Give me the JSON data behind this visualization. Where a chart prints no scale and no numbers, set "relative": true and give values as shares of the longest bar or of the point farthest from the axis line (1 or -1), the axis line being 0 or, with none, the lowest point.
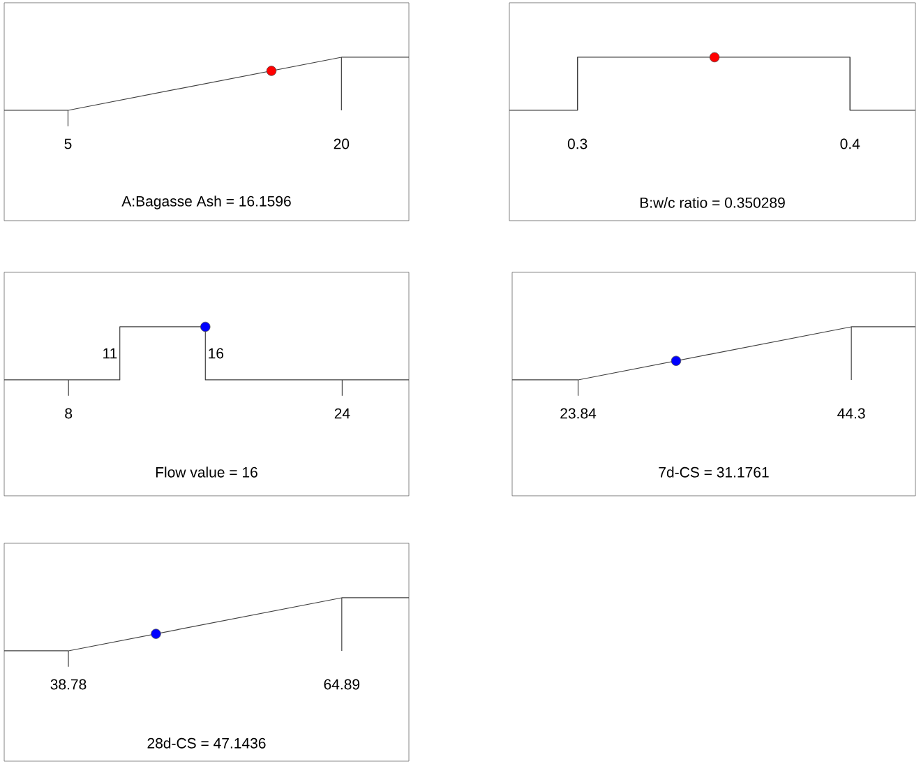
{
  "chart_data": [
    {
      "type": "line",
      "relative": true,
      "xlabel": "A:Bagasse Ash = 16.1596",
      "xlim": [
        1.5,
        23.7
      ],
      "xticks": [
        5,
        20
      ],
      "series": [
        {
          "type": "line",
          "color": "#404040",
          "x": [
            1.5,
            5,
            20,
            23.7
          ],
          "values": [
            0,
            0,
            1,
            1
          ]
        },
        {
          "type": "scatter",
          "color": "#ff0000",
          "marker": "circle",
          "x": [
            16.1596
          ],
          "values": [
            0.744
          ]
        }
      ]
    },
    {
      "type": "line",
      "relative": true,
      "xlabel": "B:w/c ratio = 0.350289",
      "xlim": [
        0.275,
        0.424
      ],
      "xticks": [
        0.3,
        0.4
      ],
      "series": [
        {
          "type": "line",
          "color": "#404040",
          "x": [
            0.275,
            0.3,
            0.3,
            0.4,
            0.4,
            0.424
          ],
          "values": [
            0,
            0,
            1,
            1,
            0,
            0
          ]
        },
        {
          "type": "scatter",
          "color": "#ff0000",
          "marker": "circle",
          "x": [
            0.350289
          ],
          "values": [
            1
          ]
        }
      ]
    },
    {
      "type": "line",
      "relative": true,
      "xlabel": "Flow value = 16",
      "xlim": [
        4.24,
        27.9
      ],
      "xticks": [
        8,
        24
      ],
      "annotations": [
        {
          "text": "11",
          "x": 11,
          "y": 0.5
        },
        {
          "text": "16",
          "x": 16,
          "y": 0.5
        }
      ],
      "series": [
        {
          "type": "line",
          "color": "#404040",
          "x": [
            4.24,
            11,
            11,
            16,
            16,
            27.9
          ],
          "values": [
            0,
            0,
            1,
            1,
            0,
            0
          ]
        },
        {
          "type": "scatter",
          "color": "#0000ff",
          "marker": "circle",
          "x": [
            16
          ],
          "values": [
            1
          ]
        }
      ]
    },
    {
      "type": "line",
      "relative": true,
      "xlabel": "7d-CS = 31.1761",
      "xlim": [
        18.9,
        49.1
      ],
      "xticks": [
        23.84,
        44.3
      ],
      "series": [
        {
          "type": "line",
          "color": "#404040",
          "x": [
            18.9,
            23.84,
            44.3,
            49.1
          ],
          "values": [
            0,
            0,
            1,
            1
          ]
        },
        {
          "type": "scatter",
          "color": "#0000ff",
          "marker": "circle",
          "x": [
            31.1761
          ],
          "values": [
            0.3586
          ]
        }
      ]
    },
    {
      "type": "line",
      "relative": true,
      "xlabel": "28d-CS = 47.1436",
      "xlim": [
        32.65,
        71.3
      ],
      "xticks": [
        38.78,
        64.89
      ],
      "series": [
        {
          "type": "line",
          "color": "#404040",
          "x": [
            32.65,
            38.78,
            64.89,
            71.3
          ],
          "values": [
            0,
            0,
            1,
            1
          ]
        },
        {
          "type": "scatter",
          "color": "#0000ff",
          "marker": "circle",
          "x": [
            47.1436
          ],
          "values": [
            0.3203
          ]
        }
      ]
    }
  ]
}
